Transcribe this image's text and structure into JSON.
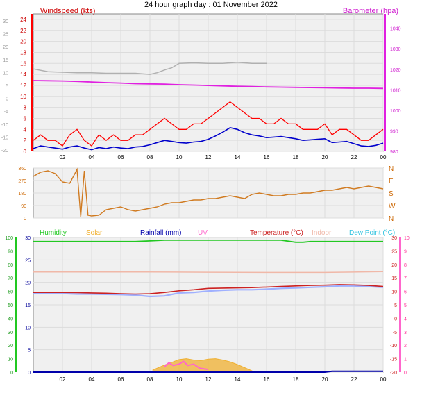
{
  "title": "24 hour graph day : 01 November 2022",
  "colors": {
    "wind_gust": "#ff0000",
    "wind_avg": "#0000cc",
    "baro": "#e020e0",
    "baro_gray": "#b0b0b0",
    "dir": "#d07a20",
    "humidity": "#22c822",
    "solar": "#f0b030",
    "rainfall": "#0000aa",
    "uv": "#ff66cc",
    "temperature": "#cc2222",
    "indoor": "#f0b8a8",
    "dewpoint": "#9fb0ff",
    "dewpoint_label": "#33c4e0",
    "grid": "#dcdcdc",
    "panel_bg": "#f0f0f0"
  },
  "chart_data": [
    {
      "type": "line",
      "id": "wind_baro",
      "x_ticks": [
        "02",
        "04",
        "06",
        "08",
        "10",
        "12",
        "14",
        "16",
        "18",
        "20",
        "22",
        "00"
      ],
      "left_axis": {
        "label": "Windspeed (kts)",
        "ticks": [
          0,
          2,
          4,
          6,
          8,
          10,
          12,
          14,
          16,
          18,
          20,
          22,
          24
        ],
        "range": [
          0,
          25
        ]
      },
      "outer_left_axis": {
        "ticks": [
          -20,
          -15,
          -10,
          -5,
          0,
          5,
          10,
          15,
          20,
          25,
          30
        ]
      },
      "right_axis": {
        "label": "Barometer (hpa)",
        "ticks": [
          980,
          990,
          1000,
          1010,
          1020,
          1030,
          1040
        ],
        "range": [
          980,
          1047
        ]
      },
      "series": [
        {
          "key": "barometer",
          "x": [
            0,
            1,
            2,
            3,
            4,
            5,
            6,
            7,
            8,
            9,
            10,
            11,
            12,
            13,
            14,
            15,
            16,
            17,
            18,
            19,
            20,
            21,
            22,
            23,
            24
          ],
          "values": [
            1014.5,
            1014.4,
            1014.3,
            1014.1,
            1013.8,
            1013.5,
            1013.3,
            1013.0,
            1012.9,
            1012.8,
            1012.5,
            1012.3,
            1012.1,
            1011.9,
            1011.7,
            1011.6,
            1011.4,
            1011.3,
            1011.2,
            1011.1,
            1011.0,
            1010.9,
            1010.8,
            1010.8,
            1010.7
          ]
        },
        {
          "key": "wind_gust",
          "x": [
            0,
            0.5,
            1,
            1.5,
            2,
            2.5,
            3,
            3.5,
            4,
            4.5,
            5,
            5.5,
            6,
            6.5,
            7,
            7.5,
            8,
            8.5,
            9,
            9.5,
            10,
            10.5,
            11,
            11.5,
            12,
            12.5,
            13,
            13.5,
            14,
            14.5,
            15,
            15.5,
            16,
            16.5,
            17,
            17.5,
            18,
            18.5,
            19,
            19.5,
            20,
            20.5,
            21,
            21.5,
            22,
            22.5,
            23,
            23.5,
            24
          ],
          "values": [
            2,
            3,
            2,
            2,
            1,
            3,
            4,
            2,
            1,
            3,
            2,
            3,
            2,
            2,
            3,
            3,
            4,
            5,
            6,
            5,
            4,
            4,
            5,
            5,
            6,
            7,
            8,
            9,
            8,
            7,
            6,
            6,
            5,
            5,
            6,
            5,
            5,
            4,
            4,
            4,
            5,
            3,
            4,
            4,
            3,
            2,
            2,
            3,
            4
          ]
        },
        {
          "key": "wind_avg",
          "x": [
            0,
            0.5,
            1,
            1.5,
            2,
            2.5,
            3,
            3.5,
            4,
            4.5,
            5,
            5.5,
            6,
            6.5,
            7,
            7.5,
            8,
            8.5,
            9,
            9.5,
            10,
            10.5,
            11,
            11.5,
            12,
            12.5,
            13,
            13.5,
            14,
            14.5,
            15,
            15.5,
            16,
            16.5,
            17,
            17.5,
            18,
            18.5,
            19,
            19.5,
            20,
            20.5,
            21,
            21.5,
            22,
            22.5,
            23,
            23.5,
            24
          ],
          "values": [
            0.5,
            1,
            0.8,
            0.6,
            0.4,
            0.8,
            1,
            0.6,
            0.3,
            0.7,
            0.5,
            0.8,
            0.6,
            0.5,
            0.8,
            0.9,
            1.2,
            1.6,
            2,
            1.8,
            1.6,
            1.5,
            1.7,
            1.8,
            2.2,
            2.8,
            3.5,
            4.3,
            4,
            3.4,
            3,
            2.8,
            2.5,
            2.6,
            2.7,
            2.5,
            2.3,
            2.0,
            2.1,
            2.2,
            2.3,
            1.6,
            1.7,
            1.8,
            1.4,
            1,
            0.9,
            1.1,
            1.5
          ]
        },
        {
          "key": "baro_gray",
          "x": [
            0,
            1,
            2,
            3,
            4,
            5,
            6,
            7,
            8,
            8.5,
            9,
            9.5,
            10,
            11,
            12,
            13,
            14,
            15,
            16
          ],
          "values": [
            15,
            14.5,
            14.4,
            14.3,
            14.3,
            14.2,
            14.2,
            14.2,
            14.0,
            14.3,
            14.8,
            15.2,
            16.0,
            16.1,
            16.0,
            16.0,
            16.2,
            16.0,
            16.0
          ]
        }
      ]
    },
    {
      "type": "scatter",
      "id": "wind_direction",
      "x_ticks": [],
      "left_axis": {
        "ticks": [
          0,
          90,
          180,
          270,
          360
        ],
        "range": [
          0,
          360
        ]
      },
      "right_axis": {
        "ticks": [
          "N",
          "E",
          "S",
          "W",
          "N"
        ]
      },
      "series": [
        {
          "key": "direction",
          "x": [
            0,
            0.5,
            1,
            1.5,
            2,
            2.5,
            3,
            3.25,
            3.5,
            3.75,
            4,
            4.5,
            5,
            5.5,
            6,
            6.5,
            7,
            7.5,
            8,
            8.5,
            9,
            9.5,
            10,
            10.5,
            11,
            11.5,
            12,
            12.5,
            13,
            13.5,
            14,
            14.5,
            15,
            15.5,
            16,
            16.5,
            17,
            17.5,
            18,
            18.5,
            19,
            19.5,
            20,
            20.5,
            21,
            21.5,
            22,
            22.5,
            23,
            23.5,
            24
          ],
          "values": [
            300,
            330,
            340,
            320,
            260,
            250,
            350,
            10,
            340,
            20,
            15,
            20,
            60,
            70,
            80,
            60,
            50,
            60,
            70,
            80,
            100,
            110,
            110,
            120,
            130,
            130,
            140,
            140,
            150,
            160,
            150,
            140,
            170,
            180,
            170,
            160,
            160,
            170,
            170,
            180,
            180,
            190,
            200,
            200,
            210,
            220,
            210,
            220,
            230,
            220,
            210
          ]
        }
      ]
    },
    {
      "type": "line",
      "id": "temp_humidity",
      "x_ticks": [
        "02",
        "04",
        "06",
        "08",
        "10",
        "12",
        "14",
        "16",
        "18",
        "20",
        "22",
        "00"
      ],
      "legend": [
        {
          "key": "humidity",
          "label": "Humidity"
        },
        {
          "key": "solar",
          "label": "Solar"
        },
        {
          "key": "rainfall",
          "label": "Rainfall (mm)"
        },
        {
          "key": "uv",
          "label": "UV"
        },
        {
          "key": "temperature",
          "label": "Temperature (°C)"
        },
        {
          "key": "indoor",
          "label": "Indoor"
        },
        {
          "key": "dewpoint",
          "label": "Dew Point (°C)"
        }
      ],
      "humidity_axis": {
        "ticks": [
          0,
          10,
          20,
          30,
          40,
          50,
          60,
          70,
          80,
          90,
          100
        ],
        "range": [
          0,
          100
        ]
      },
      "rain_axis": {
        "ticks": [
          0,
          5,
          10,
          15,
          20,
          25,
          30
        ],
        "range": [
          0,
          30
        ]
      },
      "temp_axis": {
        "ticks": [
          -20,
          -15,
          -10,
          -5,
          0,
          5,
          10,
          15,
          20,
          25,
          30
        ],
        "range": [
          -20,
          30
        ]
      },
      "uv_axis": {
        "ticks": [
          0,
          1,
          2,
          3,
          4,
          5,
          6,
          7,
          8,
          9,
          10
        ],
        "range": [
          0,
          10
        ]
      },
      "series": [
        {
          "key": "humidity",
          "x": [
            0,
            7,
            8,
            9,
            10,
            11,
            12,
            13,
            14,
            15,
            16,
            17,
            18,
            18.5,
            19,
            20,
            21,
            22,
            23,
            24
          ],
          "values": [
            97,
            97,
            97.5,
            98,
            98,
            98,
            98,
            98,
            98,
            98,
            98,
            98,
            96.5,
            96.5,
            97,
            97,
            97,
            97,
            97,
            97
          ]
        },
        {
          "key": "temperature",
          "x": [
            0,
            1,
            2,
            3,
            4,
            5,
            6,
            7,
            8,
            9,
            10,
            11,
            12,
            13,
            14,
            15,
            16,
            17,
            18,
            19,
            20,
            21,
            22,
            23,
            24
          ],
          "values": [
            9.6,
            9.6,
            9.6,
            9.5,
            9.4,
            9.3,
            9.1,
            9.0,
            9.1,
            9.6,
            10.2,
            10.6,
            11.1,
            11.2,
            11.3,
            11.4,
            11.6,
            11.8,
            12.0,
            12.2,
            12.3,
            12.5,
            12.4,
            12.2,
            11.8
          ]
        },
        {
          "key": "dewpoint",
          "x": [
            0,
            1,
            2,
            3,
            4,
            5,
            6,
            7,
            8,
            9,
            10,
            11,
            12,
            13,
            14,
            15,
            16,
            17,
            18,
            19,
            20,
            21,
            22,
            23,
            24
          ],
          "values": [
            9.3,
            9.3,
            9.2,
            9.0,
            9.0,
            8.9,
            8.8,
            8.6,
            8.1,
            8.3,
            9.4,
            9.6,
            10.1,
            10.4,
            10.6,
            10.6,
            10.8,
            11.1,
            11.3,
            11.5,
            11.7,
            12.0,
            12.0,
            11.8,
            11.5
          ]
        },
        {
          "key": "indoor",
          "x": [
            0,
            4,
            8,
            12,
            16,
            20,
            24
          ],
          "values": [
            17.2,
            17.2,
            17.2,
            17.1,
            17.0,
            17.0,
            17.3
          ]
        },
        {
          "key": "solar",
          "x": [
            8.2,
            8.5,
            9,
            9.5,
            10,
            10.5,
            11,
            11.5,
            12,
            12.5,
            13,
            13.5,
            14,
            14.5,
            15
          ],
          "values": [
            0.5,
            0.9,
            1.6,
            2.2,
            2.8,
            3.0,
            2.7,
            2.6,
            2.9,
            3.0,
            2.7,
            2.3,
            1.7,
            1.0,
            0.3
          ]
        },
        {
          "key": "uv",
          "x": [
            9,
            9.3,
            9.6,
            10,
            10.3,
            10.6,
            11,
            11.4,
            12
          ],
          "values": [
            0.4,
            0.7,
            0.5,
            0.6,
            0.8,
            0.5,
            0.6,
            0.3,
            0.2
          ]
        },
        {
          "key": "rainfall",
          "x": [
            0,
            20,
            20.5,
            24
          ],
          "values": [
            0,
            0,
            0.2,
            0.2
          ]
        }
      ]
    }
  ]
}
